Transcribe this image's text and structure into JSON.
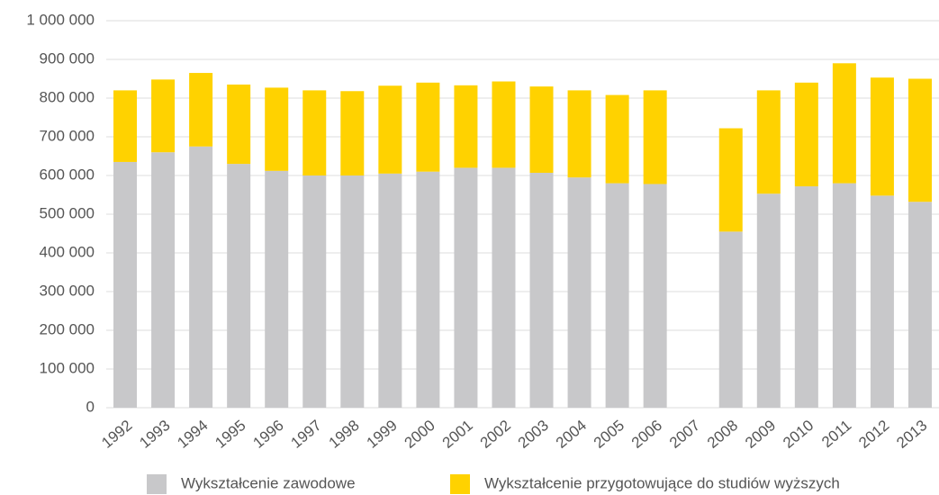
{
  "chart_data": {
    "type": "stacked_bar",
    "categories": [
      "1992",
      "1993",
      "1994",
      "1995",
      "1996",
      "1997",
      "1998",
      "1999",
      "2000",
      "2001",
      "2002",
      "2003",
      "2004",
      "2005",
      "2006",
      "2007",
      "2008",
      "2009",
      "2010",
      "2011",
      "2012",
      "2013"
    ],
    "series": [
      {
        "name": "Wykształcenie zawodowe",
        "color": "#c8c8ca",
        "values": [
          635000,
          660000,
          675000,
          630000,
          612000,
          600000,
          600000,
          605000,
          610000,
          620000,
          620000,
          607000,
          595000,
          580000,
          578000,
          null,
          455000,
          553000,
          572000,
          580000,
          548000,
          532000
        ]
      },
      {
        "name": "Wykształcenie przygotowujące do studiów wyższych",
        "color": "#ffd200",
        "values": [
          185000,
          188000,
          190000,
          205000,
          215000,
          220000,
          218000,
          227000,
          230000,
          213000,
          223000,
          223000,
          225000,
          228000,
          242000,
          null,
          267000,
          267000,
          268000,
          310000,
          305000,
          318000
        ]
      }
    ],
    "ylim": [
      0,
      1000000
    ],
    "yticks": [
      0,
      {
        "value": 100000,
        "label": "100 000"
      },
      {
        "value": 200000,
        "label": "200 000"
      },
      {
        "value": 300000,
        "label": "300 000"
      },
      {
        "value": 400000,
        "label": "400 000"
      },
      {
        "value": 500000,
        "label": "500 000"
      },
      {
        "value": 600000,
        "label": "600 000"
      },
      {
        "value": 700000,
        "label": "700 000"
      },
      {
        "value": 800000,
        "label": "800 000"
      },
      {
        "value": 900000,
        "label": "900 000"
      },
      {
        "value": 1000000,
        "label": "1 000 000"
      }
    ],
    "grid": true,
    "legend": "bottom"
  }
}
